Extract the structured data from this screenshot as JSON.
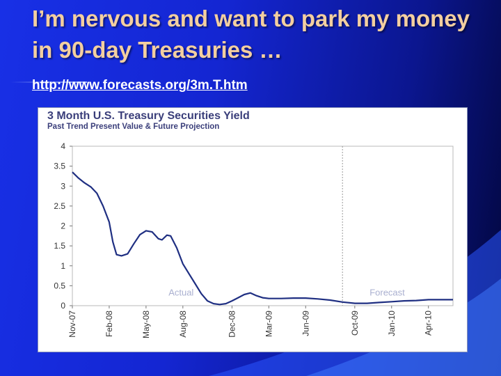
{
  "slide": {
    "title": "I’m nervous and want to park my money in 90-day Treasuries …",
    "link": "http://www.forecasts.org/3m.T.htm"
  },
  "colors": {
    "title_text": "#f3cfa0",
    "background_light": "#1830e6",
    "background_dark": "#02063a",
    "series_line": "#1f2f82",
    "chart_title": "#3a3e7a"
  },
  "chart_data": {
    "type": "line",
    "title": "3 Month U.S. Treasury Securities Yield",
    "subtitle": "Past Trend Present Value & Future Projection",
    "xlabel": "",
    "ylabel": "",
    "ylim": [
      0,
      4
    ],
    "y_ticks": [
      "0",
      "0.5",
      "1",
      "1.5",
      "2",
      "2.5",
      "3",
      "3.5",
      "4"
    ],
    "x_tick_labels": [
      "Nov-07",
      "Feb-08",
      "May-08",
      "Aug-08",
      "Dec-08",
      "Mar-09",
      "Jun-09",
      "Oct-09",
      "Jan-10",
      "Apr-10"
    ],
    "x_tick_months": [
      0,
      3,
      6,
      9,
      13,
      16,
      19,
      23,
      26,
      29
    ],
    "x_range_months": [
      0,
      31
    ],
    "forecast_start_month": 22,
    "grid": false,
    "annotations": [
      "Actual",
      "Forecast"
    ],
    "series": [
      {
        "x_months": [
          0,
          0.5,
          1,
          1.5,
          2,
          2.5,
          3,
          3.3,
          3.6,
          4,
          4.5,
          5,
          5.5,
          6,
          6.5,
          7,
          7.3,
          7.7,
          8,
          8.5,
          9,
          9.5,
          10,
          10.5,
          11,
          11.5,
          12,
          12.5,
          13,
          13.5,
          14,
          14.5,
          15,
          15.5,
          16,
          16.5,
          17,
          18,
          19,
          20,
          21,
          22,
          23,
          24,
          25,
          26,
          27,
          28,
          29,
          30,
          31
        ],
        "y": [
          3.35,
          3.2,
          3.08,
          2.98,
          2.82,
          2.5,
          2.1,
          1.6,
          1.28,
          1.25,
          1.3,
          1.55,
          1.78,
          1.88,
          1.85,
          1.68,
          1.65,
          1.77,
          1.75,
          1.45,
          1.05,
          0.8,
          0.55,
          0.3,
          0.12,
          0.05,
          0.03,
          0.05,
          0.12,
          0.2,
          0.28,
          0.32,
          0.25,
          0.2,
          0.18,
          0.18,
          0.18,
          0.19,
          0.19,
          0.17,
          0.14,
          0.09,
          0.06,
          0.06,
          0.08,
          0.1,
          0.12,
          0.13,
          0.15,
          0.15,
          0.15
        ]
      }
    ]
  }
}
